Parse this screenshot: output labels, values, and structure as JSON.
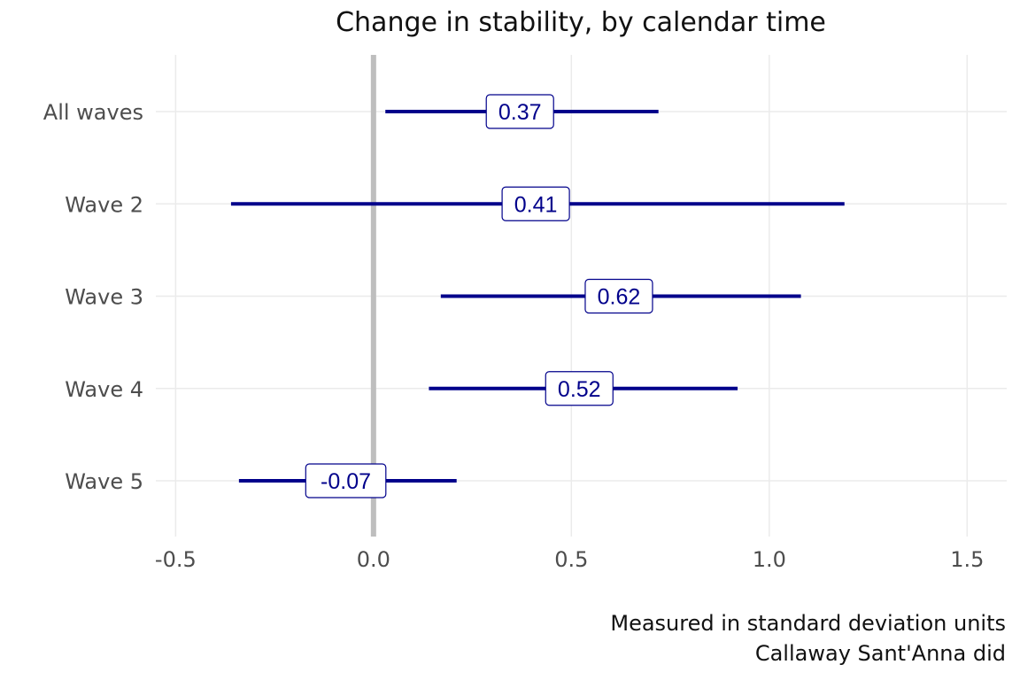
{
  "chart_data": {
    "type": "forest",
    "title": "Change in stability, by calendar time",
    "captions": [
      "Measured in standard deviation units",
      "Callaway Sant'Anna did"
    ],
    "xlim": [
      -0.55,
      1.6
    ],
    "x_ticks": [
      -0.5,
      0.0,
      0.5,
      1.0,
      1.5
    ],
    "x_tick_labels": [
      "-0.5",
      "0.0",
      "0.5",
      "1.0",
      "1.5"
    ],
    "reference_line": 0,
    "categories": [
      "All waves",
      "Wave 2",
      "Wave 3",
      "Wave 4",
      "Wave 5"
    ],
    "estimates": [
      0.37,
      0.41,
      0.62,
      0.52,
      -0.07
    ],
    "estimate_labels": [
      "0.37",
      "0.41",
      "0.62",
      "0.52",
      "-0.07"
    ],
    "lower": [
      0.03,
      -0.36,
      0.17,
      0.14,
      -0.34
    ],
    "upper": [
      0.72,
      1.19,
      1.08,
      0.92,
      0.21
    ],
    "grid": true,
    "colors": {
      "interval": "#00008b",
      "label_text": "#00008b",
      "label_border": "#00008b",
      "reference_line": "#bebebe",
      "grid": "#ebebeb",
      "axis_text": "#4d4d4d"
    }
  }
}
